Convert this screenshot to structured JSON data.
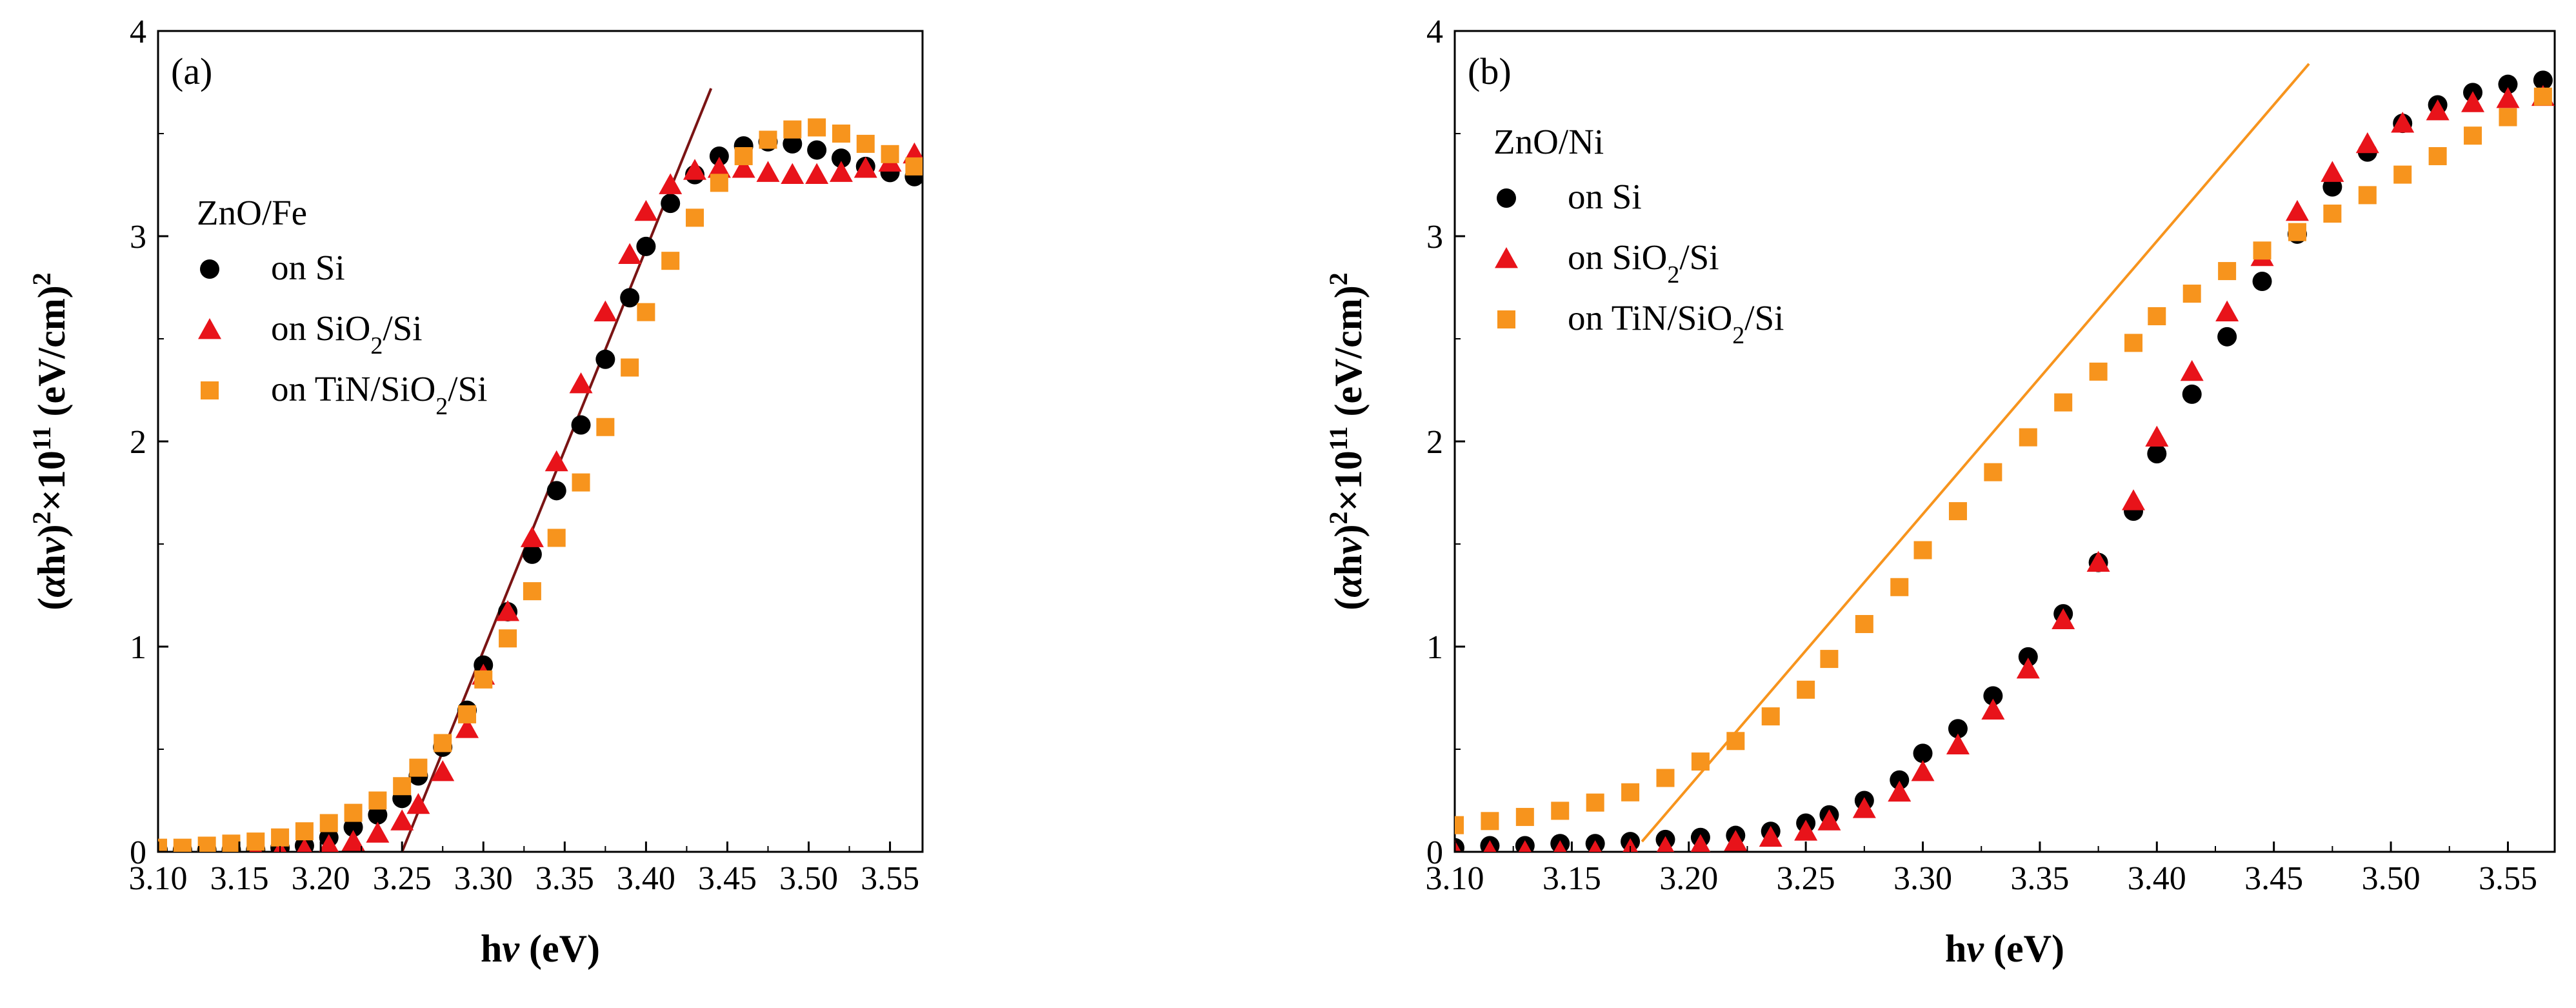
{
  "figure": {
    "panel_count": 2
  },
  "chart_data": [
    {
      "type": "scatter",
      "panel_label": "(a)",
      "legend_title": "ZnO/Fe",
      "legend_position": "top-left",
      "xlabel_main": "h",
      "xlabel_symbol": "ν",
      "xlabel_unit": " (eV)",
      "ylabel_prefix": "(",
      "ylabel_alpha": "α",
      "ylabel_h": "h",
      "ylabel_nu": "ν",
      "ylabel_close": ")",
      "ylabel_sup1": "2",
      "ylabel_times": "×10",
      "ylabel_sup2": "11",
      "ylabel_unit": " (eV/cm)",
      "ylabel_sup3": "2",
      "xlim": [
        3.1,
        3.57
      ],
      "ylim": [
        0,
        4
      ],
      "xticks": [
        "3.10",
        "3.15",
        "3.20",
        "3.25",
        "3.30",
        "3.35",
        "3.40",
        "3.45",
        "3.50",
        "3.55"
      ],
      "yticks": [
        "0",
        "1",
        "2",
        "3",
        "4"
      ],
      "grid": false,
      "fit_line": {
        "color": "#7a1414",
        "x": [
          3.25,
          3.44
        ],
        "y": [
          0.0,
          3.72
        ]
      },
      "series": [
        {
          "name": "on Si",
          "label_prefix": "on Si",
          "label_sub": "",
          "label_suffix": "",
          "marker": "circle",
          "color": "#000000",
          "x": [
            3.1,
            3.115,
            3.13,
            3.145,
            3.16,
            3.175,
            3.19,
            3.205,
            3.22,
            3.235,
            3.25,
            3.26,
            3.275,
            3.29,
            3.3,
            3.315,
            3.33,
            3.345,
            3.36,
            3.375,
            3.39,
            3.4,
            3.415,
            3.43,
            3.445,
            3.46,
            3.475,
            3.49,
            3.505,
            3.52,
            3.535,
            3.55,
            3.565
          ],
          "values": [
            0.01,
            0.01,
            0.01,
            0.01,
            0.01,
            0.02,
            0.03,
            0.07,
            0.12,
            0.18,
            0.26,
            0.37,
            0.51,
            0.69,
            0.91,
            1.17,
            1.45,
            1.76,
            2.08,
            2.4,
            2.7,
            2.95,
            3.16,
            3.3,
            3.39,
            3.44,
            3.46,
            3.45,
            3.42,
            3.38,
            3.34,
            3.31,
            3.29
          ]
        },
        {
          "name": "on SiO2/Si",
          "label_prefix": "on SiO",
          "label_sub": "2",
          "label_suffix": "/Si",
          "marker": "triangle",
          "color": "#e8131a",
          "x": [
            3.1,
            3.115,
            3.13,
            3.145,
            3.16,
            3.175,
            3.19,
            3.205,
            3.22,
            3.235,
            3.25,
            3.26,
            3.275,
            3.29,
            3.3,
            3.315,
            3.33,
            3.345,
            3.36,
            3.375,
            3.39,
            3.4,
            3.415,
            3.43,
            3.445,
            3.46,
            3.475,
            3.49,
            3.505,
            3.52,
            3.535,
            3.55,
            3.565
          ],
          "values": [
            0.0,
            0.0,
            0.0,
            0.0,
            0.0,
            0.0,
            0.01,
            0.03,
            0.05,
            0.09,
            0.15,
            0.23,
            0.39,
            0.6,
            0.86,
            1.17,
            1.53,
            1.9,
            2.28,
            2.63,
            2.91,
            3.12,
            3.25,
            3.32,
            3.33,
            3.33,
            3.31,
            3.3,
            3.3,
            3.31,
            3.33,
            3.36,
            3.4
          ]
        },
        {
          "name": "on TiN/SiO2/Si",
          "label_prefix": "on TiN/SiO",
          "label_sub": "2",
          "label_suffix": "/Si",
          "marker": "square",
          "color": "#f7941d",
          "x": [
            3.1,
            3.115,
            3.13,
            3.145,
            3.16,
            3.175,
            3.19,
            3.205,
            3.22,
            3.235,
            3.25,
            3.26,
            3.275,
            3.29,
            3.3,
            3.315,
            3.33,
            3.345,
            3.36,
            3.375,
            3.39,
            3.4,
            3.415,
            3.43,
            3.445,
            3.46,
            3.475,
            3.49,
            3.505,
            3.52,
            3.535,
            3.55,
            3.565
          ],
          "values": [
            0.02,
            0.02,
            0.03,
            0.04,
            0.05,
            0.07,
            0.1,
            0.14,
            0.19,
            0.25,
            0.32,
            0.41,
            0.53,
            0.67,
            0.84,
            1.04,
            1.27,
            1.53,
            1.8,
            2.07,
            2.36,
            2.63,
            2.88,
            3.09,
            3.26,
            3.39,
            3.47,
            3.52,
            3.53,
            3.5,
            3.45,
            3.4,
            3.34
          ]
        }
      ]
    },
    {
      "type": "scatter",
      "panel_label": "(b)",
      "legend_title": "ZnO/Ni",
      "legend_position": "top-left",
      "xlabel_main": "h",
      "xlabel_symbol": "ν",
      "xlabel_unit": " (eV)",
      "ylabel_prefix": "(",
      "ylabel_alpha": "α",
      "ylabel_h": "h",
      "ylabel_nu": "ν",
      "ylabel_close": ")",
      "ylabel_sup1": "2",
      "ylabel_times": "×10",
      "ylabel_sup2": "11",
      "ylabel_unit": " (eV/cm)",
      "ylabel_sup3": "2",
      "xlim": [
        3.1,
        3.57
      ],
      "ylim": [
        0,
        4
      ],
      "xticks": [
        "3.10",
        "3.15",
        "3.20",
        "3.25",
        "3.30",
        "3.35",
        "3.40",
        "3.45",
        "3.50",
        "3.55"
      ],
      "yticks": [
        "0",
        "1",
        "2",
        "3",
        "4"
      ],
      "grid": false,
      "fit_line": {
        "color": "#f7941d",
        "x": [
          3.18,
          3.465
        ],
        "y": [
          0.05,
          3.84
        ]
      },
      "series": [
        {
          "name": "on Si",
          "label_prefix": "on Si",
          "label_sub": "",
          "label_suffix": "",
          "marker": "circle",
          "color": "#000000",
          "x": [
            3.1,
            3.115,
            3.13,
            3.145,
            3.16,
            3.175,
            3.19,
            3.205,
            3.22,
            3.235,
            3.25,
            3.26,
            3.275,
            3.29,
            3.3,
            3.315,
            3.33,
            3.345,
            3.36,
            3.375,
            3.39,
            3.4,
            3.415,
            3.43,
            3.445,
            3.46,
            3.475,
            3.49,
            3.505,
            3.52,
            3.535,
            3.55,
            3.565
          ],
          "values": [
            0.02,
            0.03,
            0.03,
            0.04,
            0.04,
            0.05,
            0.06,
            0.07,
            0.08,
            0.1,
            0.14,
            0.18,
            0.25,
            0.35,
            0.48,
            0.6,
            0.76,
            0.95,
            1.16,
            1.41,
            1.66,
            1.94,
            2.23,
            2.51,
            2.78,
            3.01,
            3.24,
            3.41,
            3.55,
            3.64,
            3.7,
            3.74,
            3.76
          ]
        },
        {
          "name": "on SiO2/Si",
          "label_prefix": "on SiO",
          "label_sub": "2",
          "label_suffix": "/Si",
          "marker": "triangle",
          "color": "#e8131a",
          "x": [
            3.1,
            3.115,
            3.13,
            3.145,
            3.16,
            3.175,
            3.19,
            3.205,
            3.22,
            3.235,
            3.25,
            3.26,
            3.275,
            3.29,
            3.3,
            3.315,
            3.33,
            3.345,
            3.36,
            3.375,
            3.39,
            3.4,
            3.415,
            3.43,
            3.445,
            3.46,
            3.475,
            3.49,
            3.505,
            3.52,
            3.535,
            3.55,
            3.565
          ],
          "values": [
            0.0,
            0.0,
            0.0,
            0.0,
            0.0,
            0.01,
            0.02,
            0.03,
            0.05,
            0.07,
            0.1,
            0.15,
            0.21,
            0.29,
            0.39,
            0.52,
            0.69,
            0.89,
            1.13,
            1.41,
            1.71,
            2.02,
            2.34,
            2.63,
            2.9,
            3.12,
            3.31,
            3.45,
            3.55,
            3.61,
            3.65,
            3.67,
            3.68
          ]
        },
        {
          "name": "on TiN/SiO2/Si",
          "label_prefix": "on TiN/SiO",
          "label_sub": "2",
          "label_suffix": "/Si",
          "marker": "square",
          "color": "#f7941d",
          "x": [
            3.1,
            3.115,
            3.13,
            3.145,
            3.16,
            3.175,
            3.19,
            3.205,
            3.22,
            3.235,
            3.25,
            3.26,
            3.275,
            3.29,
            3.3,
            3.315,
            3.33,
            3.345,
            3.36,
            3.375,
            3.39,
            3.4,
            3.415,
            3.43,
            3.445,
            3.46,
            3.475,
            3.49,
            3.505,
            3.52,
            3.535,
            3.55,
            3.565
          ],
          "values": [
            0.13,
            0.15,
            0.17,
            0.2,
            0.24,
            0.29,
            0.36,
            0.44,
            0.54,
            0.66,
            0.79,
            0.94,
            1.11,
            1.29,
            1.47,
            1.66,
            1.85,
            2.02,
            2.19,
            2.34,
            2.48,
            2.61,
            2.72,
            2.83,
            2.93,
            3.02,
            3.11,
            3.2,
            3.3,
            3.39,
            3.49,
            3.58,
            3.68
          ]
        }
      ]
    }
  ]
}
